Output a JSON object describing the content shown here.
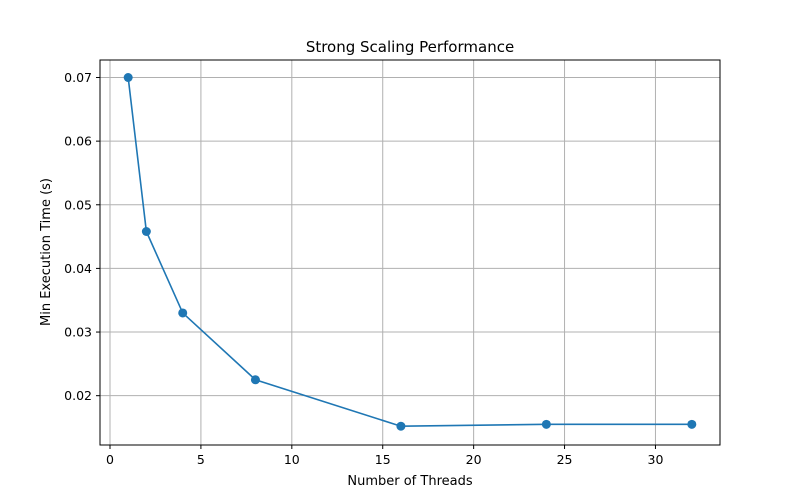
{
  "chart_data": {
    "type": "line",
    "title": "Strong Scaling Performance",
    "xlabel": "Number of Threads",
    "ylabel": "Min Execution Time (s)",
    "xlim": [
      -0.55,
      33.55
    ],
    "ylim": [
      0.01225,
      0.07275
    ],
    "xticks": [
      0,
      5,
      10,
      15,
      20,
      25,
      30
    ],
    "xtick_labels": [
      "0",
      "5",
      "10",
      "15",
      "20",
      "25",
      "30"
    ],
    "yticks": [
      0.02,
      0.03,
      0.04,
      0.05,
      0.06,
      0.07
    ],
    "ytick_labels": [
      "0.02",
      "0.03",
      "0.04",
      "0.05",
      "0.06",
      "0.07"
    ],
    "grid": true,
    "color": "#1f77b4",
    "series": [
      {
        "x": [
          1,
          2,
          4,
          8,
          16,
          24,
          32
        ],
        "y": [
          0.07,
          0.0458,
          0.033,
          0.0225,
          0.0152,
          0.0155,
          0.0155
        ],
        "marker": "circle"
      }
    ]
  }
}
